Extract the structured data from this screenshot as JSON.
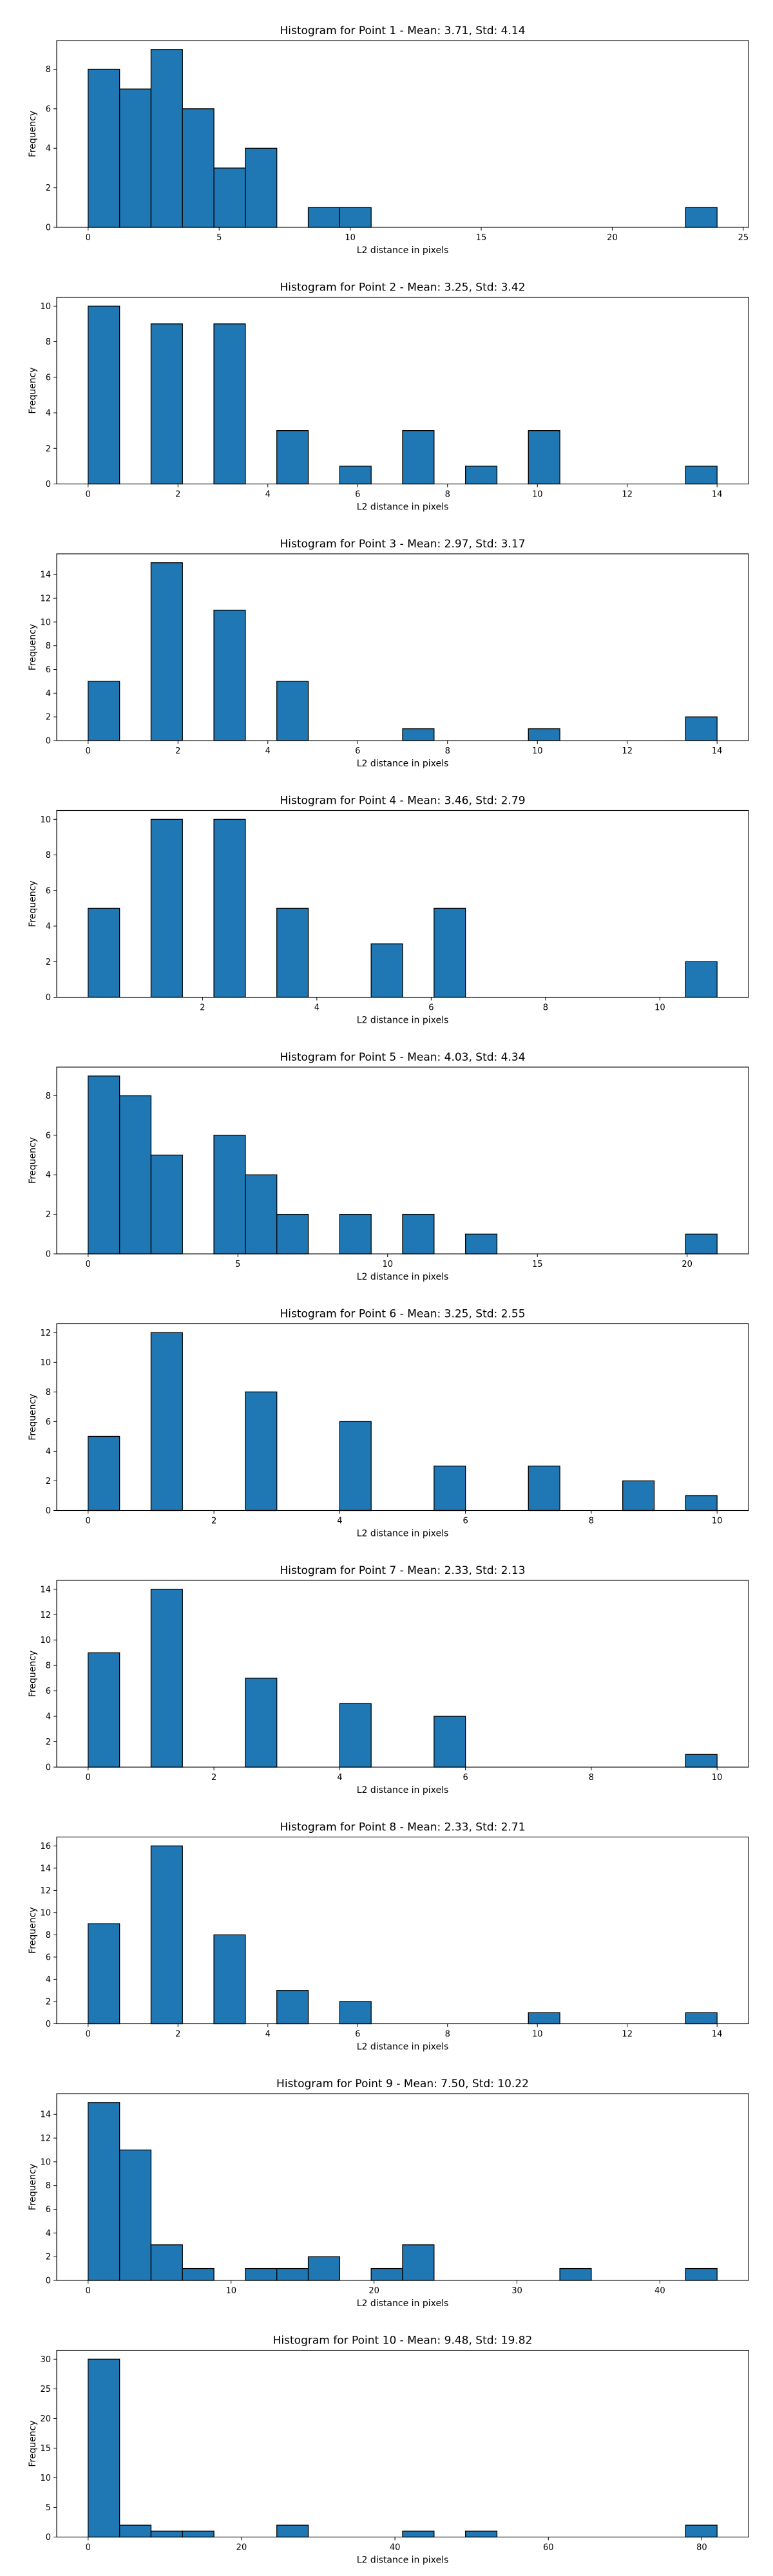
{
  "chart_data": [
    {
      "type": "bar",
      "title": "Histogram for Point 1 - Mean: 3.71, Std: 4.14",
      "xlabel": "L2 distance in pixels",
      "ylabel": "Frequency",
      "xlim": [
        -1.2,
        25.2
      ],
      "ylim": [
        0,
        9.45
      ],
      "xticks": [
        0,
        5,
        10,
        15,
        20,
        25
      ],
      "yticks": [
        0,
        2,
        4,
        6,
        8
      ],
      "bins": [
        [
          0,
          1.2,
          8
        ],
        [
          1.2,
          2.4,
          7
        ],
        [
          2.4,
          3.6,
          9
        ],
        [
          3.6,
          4.8,
          6
        ],
        [
          4.8,
          6.0,
          3
        ],
        [
          6.0,
          7.2,
          4
        ],
        [
          8.4,
          9.6,
          1
        ],
        [
          9.6,
          10.8,
          1
        ],
        [
          22.8,
          24.0,
          1
        ]
      ]
    },
    {
      "type": "bar",
      "title": "Histogram for Point 2 - Mean: 3.25, Std: 3.42",
      "xlabel": "L2 distance in pixels",
      "ylabel": "Frequency",
      "xlim": [
        -0.7,
        14.7
      ],
      "ylim": [
        0,
        10.5
      ],
      "xticks": [
        0,
        2,
        4,
        6,
        8,
        10,
        12,
        14
      ],
      "yticks": [
        0,
        2,
        4,
        6,
        8,
        10
      ],
      "bins": [
        [
          0,
          0.7,
          10
        ],
        [
          1.4,
          2.1,
          9
        ],
        [
          2.8,
          3.5,
          9
        ],
        [
          4.2,
          4.9,
          3
        ],
        [
          4.9,
          5.6,
          0
        ],
        [
          5.6,
          6.3,
          1
        ],
        [
          7.0,
          7.7,
          3
        ],
        [
          8.4,
          9.1,
          1
        ],
        [
          9.8,
          10.5,
          3
        ],
        [
          13.3,
          14.0,
          1
        ]
      ]
    },
    {
      "type": "bar",
      "title": "Histogram for Point 3 - Mean: 2.97, Std: 3.17",
      "xlabel": "L2 distance in pixels",
      "ylabel": "Frequency",
      "xlim": [
        -0.7,
        14.7
      ],
      "ylim": [
        0,
        15.75
      ],
      "xticks": [
        0,
        2,
        4,
        6,
        8,
        10,
        12,
        14
      ],
      "yticks": [
        0,
        2,
        4,
        6,
        8,
        10,
        12,
        14
      ],
      "bins": [
        [
          0,
          0.7,
          5
        ],
        [
          1.4,
          2.1,
          15
        ],
        [
          2.8,
          3.5,
          11
        ],
        [
          4.2,
          4.9,
          5
        ],
        [
          7.0,
          7.7,
          1
        ],
        [
          9.8,
          10.5,
          1
        ],
        [
          13.3,
          14.0,
          2
        ]
      ]
    },
    {
      "type": "bar",
      "title": "Histogram for Point 4 - Mean: 3.46, Std: 2.79",
      "xlabel": "L2 distance in pixels",
      "ylabel": "Frequency",
      "xlim": [
        -0.55,
        11.55
      ],
      "ylim": [
        0,
        10.5
      ],
      "xticks": [
        2,
        4,
        6,
        8,
        10
      ],
      "yticks": [
        0,
        2,
        4,
        6,
        8,
        10
      ],
      "bins": [
        [
          0,
          0.55,
          5
        ],
        [
          1.1,
          1.65,
          10
        ],
        [
          2.2,
          2.75,
          10
        ],
        [
          3.3,
          3.85,
          5
        ],
        [
          4.95,
          5.5,
          3
        ],
        [
          6.05,
          6.6,
          5
        ],
        [
          10.45,
          11.0,
          2
        ]
      ]
    },
    {
      "type": "bar",
      "title": "Histogram for Point 5 - Mean: 4.03, Std: 4.34",
      "xlabel": "L2 distance in pixels",
      "ylabel": "Frequency",
      "xlim": [
        -1.05,
        22.05
      ],
      "ylim": [
        0,
        9.45
      ],
      "xticks": [
        0,
        5,
        10,
        15,
        20
      ],
      "yticks": [
        0,
        2,
        4,
        6,
        8
      ],
      "bins": [
        [
          0,
          1.05,
          9
        ],
        [
          1.05,
          2.1,
          8
        ],
        [
          2.1,
          3.15,
          5
        ],
        [
          4.2,
          5.25,
          6
        ],
        [
          5.25,
          6.3,
          4
        ],
        [
          6.3,
          7.35,
          2
        ],
        [
          8.4,
          9.45,
          2
        ],
        [
          10.5,
          11.55,
          2
        ],
        [
          12.6,
          13.65,
          1
        ],
        [
          19.95,
          21.0,
          1
        ]
      ]
    },
    {
      "type": "bar",
      "title": "Histogram for Point 6 - Mean: 3.25, Std: 2.55",
      "xlabel": "L2 distance in pixels",
      "ylabel": "Frequency",
      "xlim": [
        -0.5,
        10.5
      ],
      "ylim": [
        0,
        12.6
      ],
      "xticks": [
        0,
        2,
        4,
        6,
        8,
        10
      ],
      "yticks": [
        0,
        2,
        4,
        6,
        8,
        10,
        12
      ],
      "bins": [
        [
          0,
          0.5,
          5
        ],
        [
          1.0,
          1.5,
          12
        ],
        [
          2.5,
          3.0,
          8
        ],
        [
          4.0,
          4.5,
          6
        ],
        [
          5.5,
          6.0,
          3
        ],
        [
          7.0,
          7.5,
          3
        ],
        [
          8.5,
          9.0,
          2
        ],
        [
          9.5,
          10.0,
          1
        ]
      ]
    },
    {
      "type": "bar",
      "title": "Histogram for Point 7 - Mean: 2.33, Std: 2.13",
      "xlabel": "L2 distance in pixels",
      "ylabel": "Frequency",
      "xlim": [
        -0.5,
        10.5
      ],
      "ylim": [
        0,
        14.7
      ],
      "xticks": [
        0,
        2,
        4,
        6,
        8,
        10
      ],
      "yticks": [
        0,
        2,
        4,
        6,
        8,
        10,
        12,
        14
      ],
      "bins": [
        [
          0,
          0.5,
          9
        ],
        [
          1.0,
          1.5,
          14
        ],
        [
          2.5,
          3.0,
          7
        ],
        [
          4.0,
          4.5,
          5
        ],
        [
          5.5,
          6.0,
          4
        ],
        [
          9.5,
          10.0,
          1
        ]
      ]
    },
    {
      "type": "bar",
      "title": "Histogram for Point 8 - Mean: 2.33, Std: 2.71",
      "xlabel": "L2 distance in pixels",
      "ylabel": "Frequency",
      "xlim": [
        -0.7,
        14.7
      ],
      "ylim": [
        0,
        16.8
      ],
      "xticks": [
        0,
        2,
        4,
        6,
        8,
        10,
        12,
        14
      ],
      "yticks": [
        0,
        2,
        4,
        6,
        8,
        10,
        12,
        14,
        16
      ],
      "bins": [
        [
          0,
          0.7,
          9
        ],
        [
          1.4,
          2.1,
          16
        ],
        [
          2.8,
          3.5,
          8
        ],
        [
          4.2,
          4.9,
          3
        ],
        [
          5.6,
          6.3,
          2
        ],
        [
          9.8,
          10.5,
          1
        ],
        [
          13.3,
          14.0,
          1
        ]
      ]
    },
    {
      "type": "bar",
      "title": "Histogram for Point 9 - Mean: 7.50, Std: 10.22",
      "xlabel": "L2 distance in pixels",
      "ylabel": "Frequency",
      "xlim": [
        -2.2,
        46.2
      ],
      "ylim": [
        0,
        15.75
      ],
      "xticks": [
        0,
        10,
        20,
        30,
        40
      ],
      "yticks": [
        0,
        2,
        4,
        6,
        8,
        10,
        12,
        14
      ],
      "bins": [
        [
          0,
          2.2,
          15
        ],
        [
          2.2,
          4.4,
          11
        ],
        [
          4.4,
          6.6,
          3
        ],
        [
          6.6,
          8.8,
          1
        ],
        [
          11.0,
          13.2,
          1
        ],
        [
          13.2,
          15.4,
          1
        ],
        [
          15.4,
          17.6,
          2
        ],
        [
          19.8,
          22.0,
          1
        ],
        [
          22.0,
          24.2,
          3
        ],
        [
          33.0,
          35.2,
          1
        ],
        [
          41.8,
          44.0,
          1
        ]
      ]
    },
    {
      "type": "bar",
      "title": "Histogram for Point 10 - Mean: 9.48, Std: 19.82",
      "xlabel": "L2 distance in pixels",
      "ylabel": "Frequency",
      "xlim": [
        -4.1,
        86.1
      ],
      "ylim": [
        0,
        31.5
      ],
      "xticks": [
        0,
        20,
        40,
        60,
        80
      ],
      "yticks": [
        0,
        5,
        10,
        15,
        20,
        25,
        30
      ],
      "bins": [
        [
          0,
          4.1,
          30
        ],
        [
          4.1,
          8.2,
          2
        ],
        [
          8.2,
          12.3,
          1
        ],
        [
          12.3,
          16.4,
          1
        ],
        [
          24.6,
          28.7,
          2
        ],
        [
          41.0,
          45.1,
          1
        ],
        [
          49.2,
          53.3,
          1
        ],
        [
          77.9,
          82.0,
          2
        ]
      ]
    }
  ]
}
